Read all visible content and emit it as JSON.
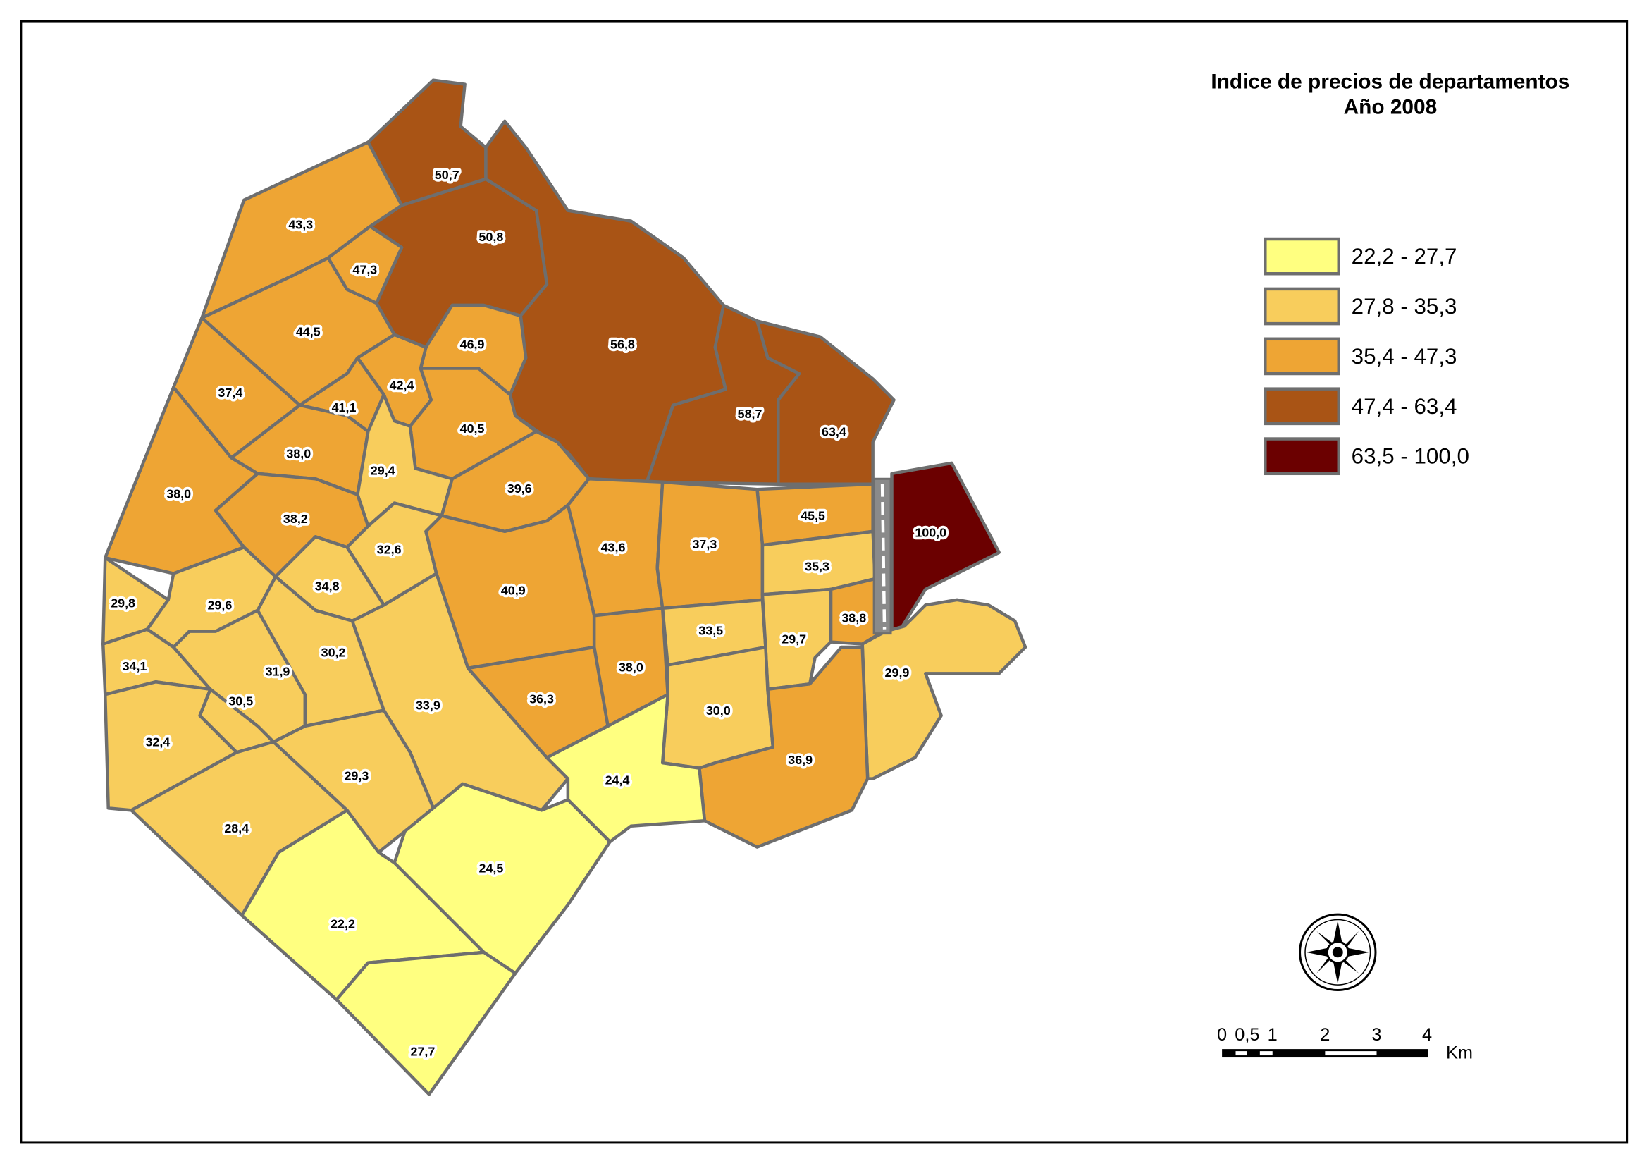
{
  "title": [
    "Indice de precios de departamentos",
    "Año 2008"
  ],
  "legend": [
    "22,2 - 27,7",
    "27,8 - 35,3",
    "35,4 - 47,3",
    "47,4 - 63,4",
    "63,5 - 100,0"
  ],
  "regions": [
    "50,7",
    "50,8",
    "43,3",
    "47,3",
    "56,8",
    "44,5",
    "46,9",
    "42,4",
    "37,4",
    "41,1",
    "58,7",
    "63,4",
    "40,5",
    "38,0",
    "29,4",
    "38,0",
    "39,6",
    "38,2",
    "45,5",
    "100,0",
    "32,6",
    "43,6",
    "37,3",
    "35,3",
    "34,8",
    "29,8",
    "29,6",
    "40,9",
    "38,8",
    "33,5",
    "29,7",
    "30,2",
    "34,1",
    "31,9",
    "38,0",
    "29,9",
    "30,5",
    "36,3",
    "33,9",
    "30,0",
    "32,4",
    "36,9",
    "29,3",
    "24,4",
    "28,4",
    "24,5",
    "22,2",
    "27,7"
  ],
  "scale_bar": {
    "ticks": [
      "0",
      "0,5",
      "1",
      "2",
      "3",
      "4"
    ],
    "unit": "Km"
  }
}
